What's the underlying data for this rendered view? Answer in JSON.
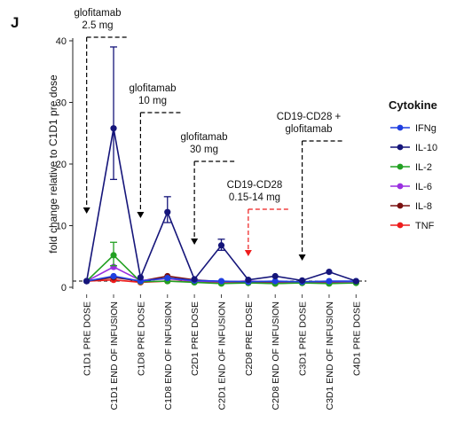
{
  "panel_label": "J",
  "chart_data": {
    "type": "line",
    "ylabel": "fold change relative to C1D1 pre dose",
    "xlabel": "",
    "ylim": [
      0,
      40
    ],
    "yticks": [
      0,
      10,
      20,
      30,
      40
    ],
    "categories": [
      "C1D1 PRE DOSE",
      "C1D1 END OF INFUSION",
      "C1D8 PRE DOSE",
      "C1D8 END OF INFUSION",
      "C2D1 PRE DOSE",
      "C2D1 END OF INFUSION",
      "C2D8 PRE DOSE",
      "C2D8 END OF INFUSION",
      "C3D1 PRE DOSE",
      "C3D1 END OF INFUSION",
      "C4D1 PRE DOSE"
    ],
    "reference_line": 1,
    "legend_title": "Cytokine",
    "legend_position": "right",
    "series": [
      {
        "name": "IFNg",
        "color": "#1f3fe0",
        "values": [
          1,
          1.8,
          1.0,
          1.5,
          1.1,
          1.0,
          0.9,
          1.0,
          0.9,
          1.0,
          1.0
        ]
      },
      {
        "name": "IL-10",
        "color": "#15157a",
        "values": [
          1,
          25.8,
          1.6,
          12.2,
          1.3,
          6.8,
          1.2,
          1.8,
          1.1,
          2.5,
          1.0
        ],
        "err_low": [
          1,
          17.5,
          1.6,
          10.5,
          1.3,
          6.0,
          1.2,
          1.8,
          1.1,
          2.5,
          1.0
        ],
        "err_high": [
          1,
          39.0,
          1.6,
          14.7,
          1.3,
          7.8,
          1.2,
          1.8,
          1.1,
          2.5,
          1.0
        ]
      },
      {
        "name": "IL-2",
        "color": "#22a022",
        "values": [
          1,
          5.2,
          0.9,
          1.0,
          0.8,
          0.6,
          0.7,
          0.6,
          0.7,
          0.6,
          0.7
        ],
        "err_low": [
          1,
          3.5,
          0.9,
          1.0,
          0.8,
          0.6,
          0.7,
          0.6,
          0.7,
          0.6,
          0.7
        ],
        "err_high": [
          1,
          7.3,
          0.9,
          1.0,
          0.8,
          0.6,
          0.7,
          0.6,
          0.7,
          0.6,
          0.7
        ]
      },
      {
        "name": "IL-6",
        "color": "#9a2fe0",
        "values": [
          1,
          3.3,
          1.1,
          1.4,
          1.0,
          0.9,
          1.0,
          0.9,
          0.9,
          0.9,
          0.9
        ]
      },
      {
        "name": "IL-8",
        "color": "#7a1010",
        "values": [
          1,
          1.6,
          1.0,
          1.8,
          1.2,
          0.9,
          1.0,
          0.8,
          0.9,
          0.8,
          0.9
        ]
      },
      {
        "name": "TNF",
        "color": "#ee1c1c",
        "values": [
          1,
          1.2,
          0.8,
          1.0,
          0.9,
          0.7,
          0.8,
          0.6,
          0.8,
          0.7,
          0.8
        ]
      }
    ],
    "annotations": [
      {
        "lines": [
          "glofitamab",
          "2.5 mg"
        ],
        "category_index": 0,
        "color": "#000000"
      },
      {
        "lines": [
          "glofitamab",
          "10 mg"
        ],
        "category_index": 2,
        "color": "#000000"
      },
      {
        "lines": [
          "glofitamab",
          "30 mg"
        ],
        "category_index": 4,
        "color": "#000000"
      },
      {
        "lines": [
          "CD19-CD28",
          "0.15-14 mg"
        ],
        "category_index": 6,
        "color": "#ee1c1c"
      },
      {
        "lines": [
          "CD19-CD28 +",
          "glofitamab"
        ],
        "category_index": 8,
        "color": "#000000"
      }
    ]
  }
}
